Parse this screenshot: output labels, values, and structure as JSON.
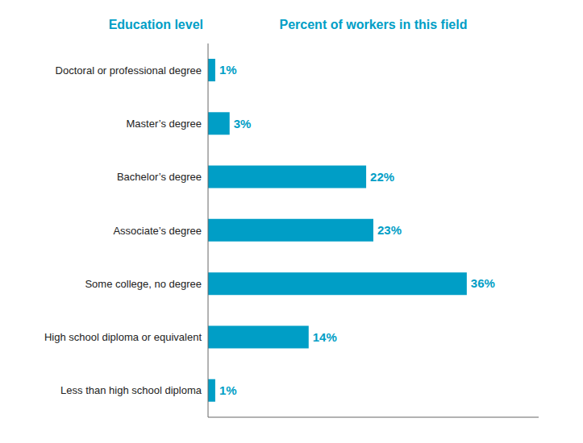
{
  "chart_data": {
    "type": "bar",
    "orientation": "horizontal",
    "xlabel": "Percent of workers in this field",
    "ylabel": "Education level",
    "categories": [
      "Doctoral or professional degree",
      "Master’s degree",
      "Bachelor’s degree",
      "Associate’s degree",
      "Some college, no degree",
      "High school diploma or equivalent",
      "Less than high school diploma"
    ],
    "values": [
      1,
      3,
      22,
      23,
      36,
      14,
      1
    ],
    "value_labels": [
      "1%",
      "3%",
      "22%",
      "23%",
      "36%",
      "14%",
      "1%"
    ],
    "data_labels": true,
    "color": "#009ec6",
    "xlim": [
      0,
      46
    ],
    "grid": false,
    "tick_labels": "y"
  }
}
